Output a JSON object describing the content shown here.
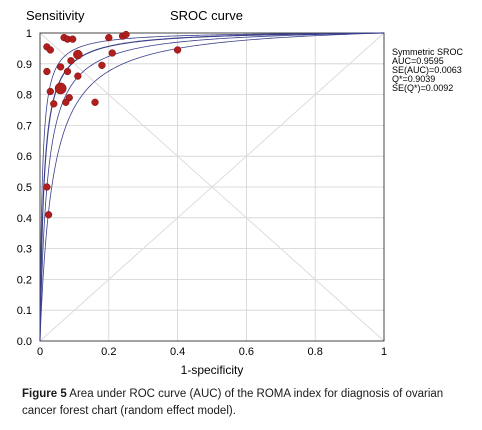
{
  "chart_data": {
    "type": "scatter",
    "title": "SROC curve",
    "xlabel": "1-specificity",
    "ylabel": "Sensitivity",
    "xlim": [
      0,
      1
    ],
    "ylim": [
      0,
      1
    ],
    "xticks": [
      "0",
      "0.2",
      "0.4",
      "0.6",
      "0.8",
      "1"
    ],
    "yticks": [
      "0.0",
      "0.1",
      "0.2",
      "0.3",
      "0.4",
      "0.5",
      "0.6",
      "0.7",
      "0.8",
      "0.9",
      "1"
    ],
    "grid": true,
    "legend_position": "top-right",
    "annotation": [
      "Symmetric SROC",
      "AUC=0.9595",
      "SE(AUC)=0.0063",
      "Q*=0.9039",
      "SE(Q*)=0.0092"
    ],
    "auc": 0.9595,
    "q_star": 0.9039,
    "colors": {
      "points": "#b01e1e",
      "curve": "#3a3f8a",
      "grid": "#d2d2d2",
      "reference": "#dcdcdc"
    },
    "points": [
      {
        "x": 0.02,
        "y": 0.955,
        "w": 2
      },
      {
        "x": 0.03,
        "y": 0.945,
        "w": 2
      },
      {
        "x": 0.07,
        "y": 0.985,
        "w": 2
      },
      {
        "x": 0.08,
        "y": 0.98,
        "w": 2
      },
      {
        "x": 0.095,
        "y": 0.98,
        "w": 2
      },
      {
        "x": 0.2,
        "y": 0.985,
        "w": 2
      },
      {
        "x": 0.24,
        "y": 0.99,
        "w": 2
      },
      {
        "x": 0.25,
        "y": 0.995,
        "w": 2
      },
      {
        "x": 0.11,
        "y": 0.93,
        "w": 3
      },
      {
        "x": 0.09,
        "y": 0.91,
        "w": 2
      },
      {
        "x": 0.06,
        "y": 0.89,
        "w": 2
      },
      {
        "x": 0.02,
        "y": 0.875,
        "w": 2
      },
      {
        "x": 0.08,
        "y": 0.875,
        "w": 2
      },
      {
        "x": 0.18,
        "y": 0.895,
        "w": 2
      },
      {
        "x": 0.21,
        "y": 0.935,
        "w": 2
      },
      {
        "x": 0.4,
        "y": 0.945,
        "w": 2
      },
      {
        "x": 0.06,
        "y": 0.82,
        "w": 4
      },
      {
        "x": 0.03,
        "y": 0.81,
        "w": 2
      },
      {
        "x": 0.11,
        "y": 0.86,
        "w": 2
      },
      {
        "x": 0.085,
        "y": 0.79,
        "w": 2
      },
      {
        "x": 0.075,
        "y": 0.775,
        "w": 2
      },
      {
        "x": 0.04,
        "y": 0.77,
        "w": 2
      },
      {
        "x": 0.16,
        "y": 0.775,
        "w": 2
      },
      {
        "x": 0.02,
        "y": 0.5,
        "w": 2
      },
      {
        "x": 0.025,
        "y": 0.41,
        "w": 2
      }
    ]
  },
  "caption": {
    "lead": "Figure 5",
    "text": " Area under ROC curve (AUC) of the ROMA index for diagnosis of ovarian cancer forest chart (random effect model)."
  }
}
